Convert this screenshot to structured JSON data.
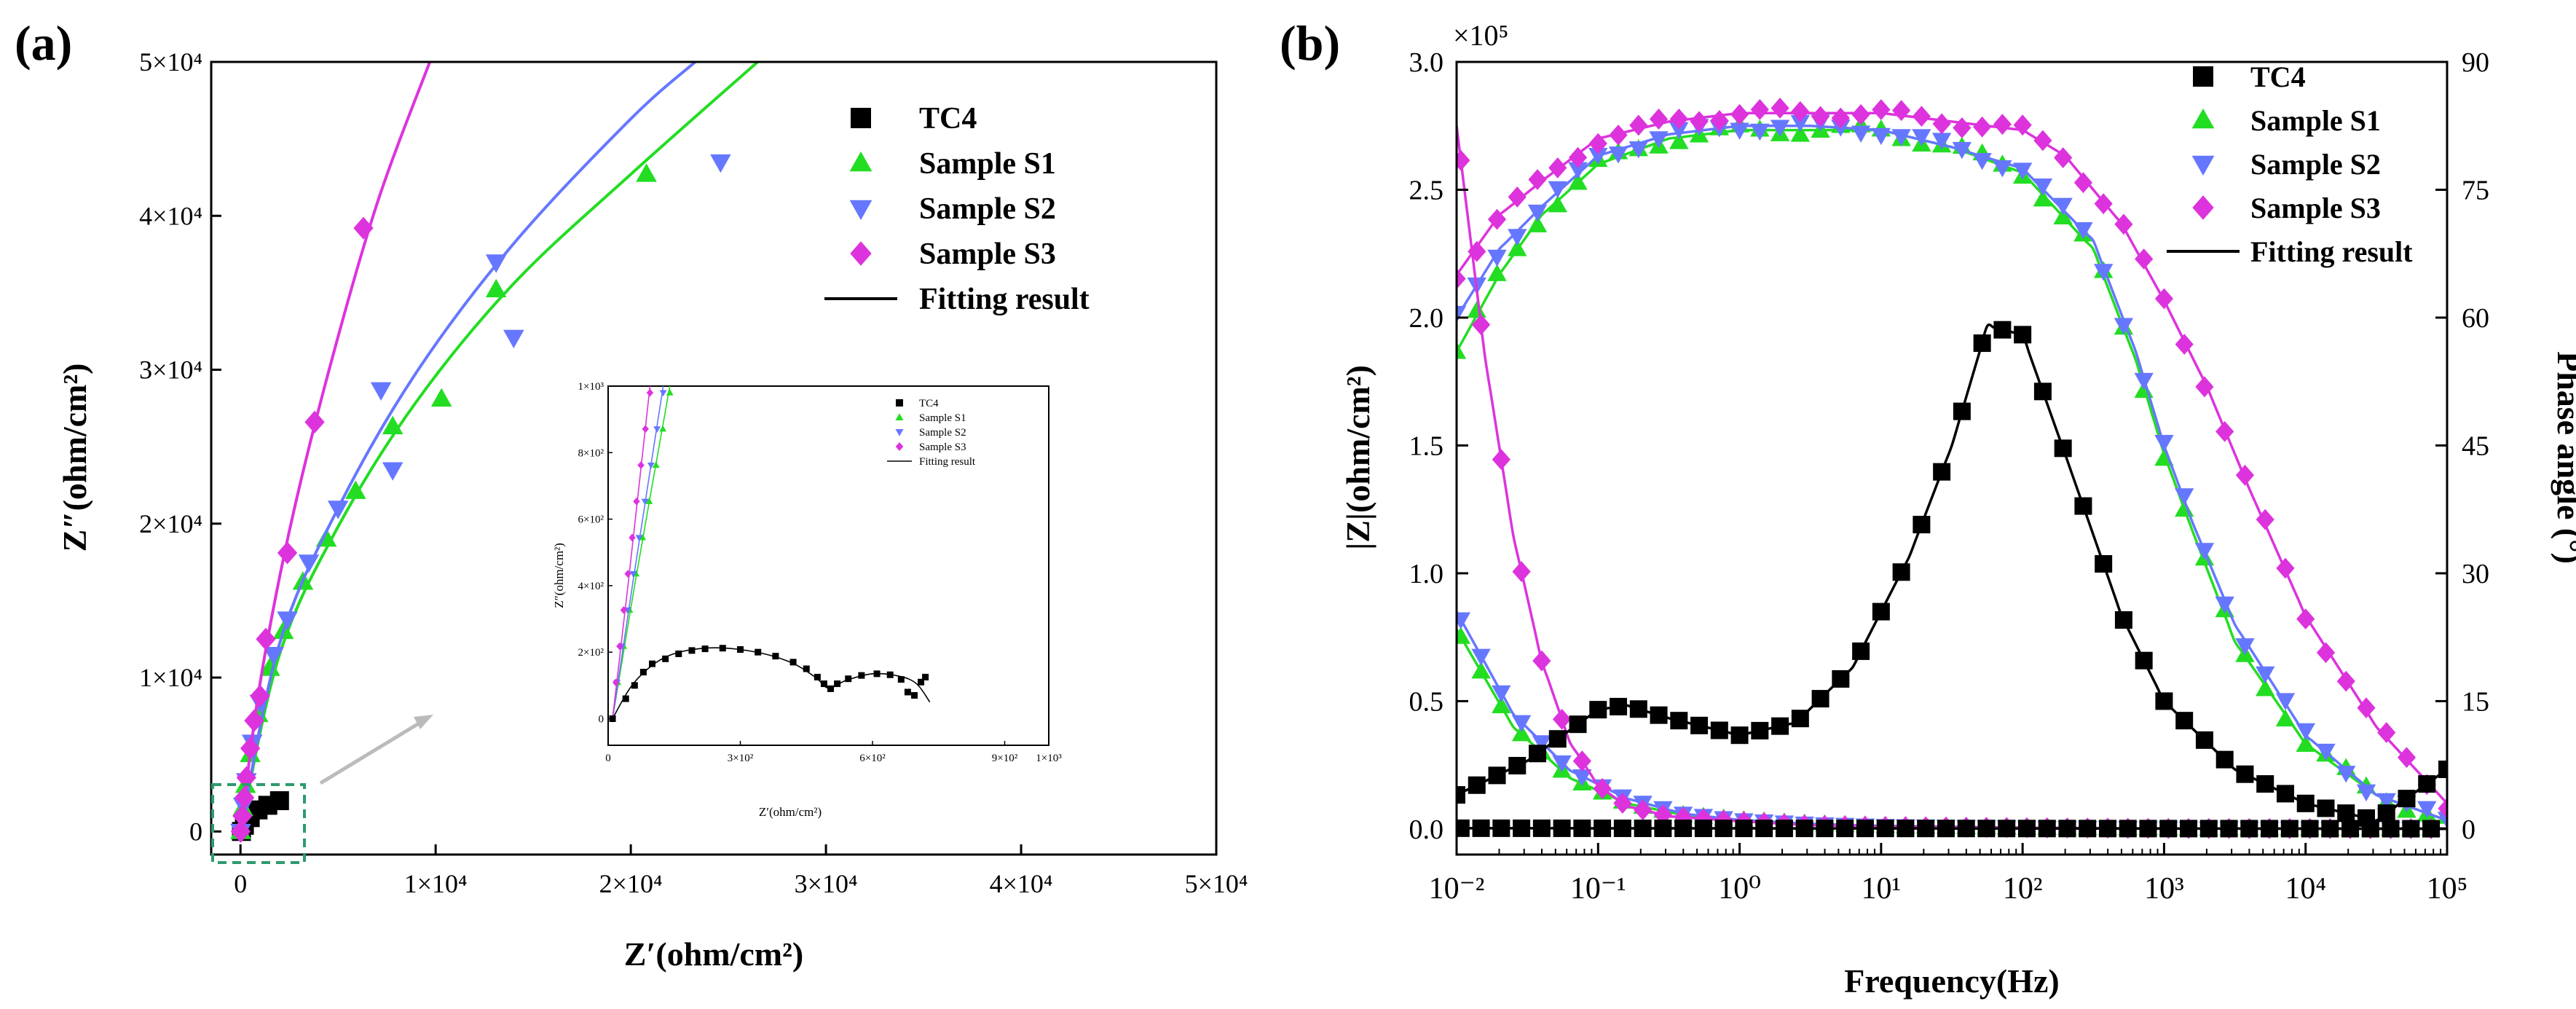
{
  "colors": {
    "tc4": "#000000",
    "s1": "#22dd22",
    "s2": "#6677ff",
    "s3": "#dd33dd",
    "zoom_box": "#2e9a6e",
    "arrow": "#bbbbbb",
    "axis": "#000000"
  },
  "chart_data": [
    {
      "panel": "(a)",
      "type": "scatter",
      "subtype": "nyquist",
      "xlabel": "Z′(ohm/cm²)",
      "ylabel": "Z″(ohm/cm²)",
      "xlim": [
        -1500,
        50000
      ],
      "ylim": [
        -1500,
        50000
      ],
      "x_ticks": [
        "0",
        "1×10⁴",
        "2×10⁴",
        "3×10⁴",
        "4×10⁴",
        "5×10⁴"
      ],
      "y_ticks": [
        "0",
        "1×10⁴",
        "2×10⁴",
        "3×10⁴",
        "4×10⁴",
        "5×10⁴"
      ],
      "legend": [
        "TC4",
        "Sample S1",
        "Sample S2",
        "Sample S3",
        "Fitting result"
      ],
      "legend_position": "top-right",
      "series": [
        {
          "name": "TC4",
          "marker": "square",
          "points": [
            [
              50,
              0
            ],
            [
              200,
              400
            ],
            [
              500,
              900
            ],
            [
              900,
              1400
            ],
            [
              1400,
              1700
            ],
            [
              2000,
              2000
            ]
          ]
        },
        {
          "name": "Sample S1",
          "marker": "triangle-up",
          "points": [
            [
              10,
              0
            ],
            [
              120,
              1500
            ],
            [
              260,
              3000
            ],
            [
              500,
              5000
            ],
            [
              900,
              7600
            ],
            [
              1500,
              10600
            ],
            [
              2200,
              13000
            ],
            [
              3200,
              16200
            ],
            [
              4400,
              19000
            ],
            [
              5900,
              22100
            ],
            [
              7800,
              26300
            ],
            [
              10300,
              28100
            ],
            [
              13100,
              35200
            ],
            [
              20800,
              42700
            ]
          ],
          "fit": [
            [
              0,
              0
            ],
            [
              2000,
              11500
            ],
            [
              5000,
              19800
            ],
            [
              9000,
              27900
            ],
            [
              14000,
              35600
            ],
            [
              20000,
              42700
            ],
            [
              26500,
              50000
            ]
          ]
        },
        {
          "name": "Sample S2",
          "marker": "triangle-down",
          "points": [
            [
              10,
              0
            ],
            [
              150,
              1700
            ],
            [
              300,
              3300
            ],
            [
              600,
              5800
            ],
            [
              1000,
              8400
            ],
            [
              1700,
              11500
            ],
            [
              2400,
              13800
            ],
            [
              3500,
              17500
            ],
            [
              5000,
              21000
            ],
            [
              7200,
              28700
            ],
            [
              7800,
              23500
            ],
            [
              13100,
              37000
            ],
            [
              14000,
              32100
            ],
            [
              24600,
              43500
            ]
          ],
          "fit": [
            [
              0,
              0
            ],
            [
              2000,
              12200
            ],
            [
              5000,
              21000
            ],
            [
              9000,
              29800
            ],
            [
              14000,
              38200
            ],
            [
              20000,
              46300
            ],
            [
              23300,
              50000
            ]
          ]
        },
        {
          "name": "Sample S3",
          "marker": "diamond",
          "points": [
            [
              10,
              0
            ],
            [
              100,
              1000
            ],
            [
              200,
              2200
            ],
            [
              300,
              3500
            ],
            [
              500,
              5400
            ],
            [
              700,
              7200
            ],
            [
              1000,
              8800
            ],
            [
              1300,
              12500
            ],
            [
              2400,
              18100
            ],
            [
              3800,
              26600
            ],
            [
              6300,
              39200
            ]
          ],
          "fit": [
            [
              0,
              0
            ],
            [
              1000,
              9600
            ],
            [
              2500,
              19500
            ],
            [
              4500,
              29800
            ],
            [
              7000,
              40800
            ],
            [
              9700,
              50000
            ]
          ]
        }
      ],
      "inset": {
        "xlabel": "Z′(ohm/cm²)",
        "ylabel": "Z″(ohm/cm²)",
        "xlim": [
          0,
          1000
        ],
        "ylim": [
          -80,
          1000
        ],
        "x_ticks": [
          "0",
          "3×10²",
          "6×10²",
          "9×10²",
          "1×10³"
        ],
        "y_ticks": [
          "0",
          "2×10²",
          "4×10²",
          "6×10²",
          "8×10²",
          "1×10³"
        ],
        "legend": [
          "TC4",
          "Sample S1",
          "Sample S2",
          "Sample S3",
          "Fitting result"
        ],
        "tc4_points": [
          [
            10,
            0
          ],
          [
            40,
            60
          ],
          [
            60,
            100
          ],
          [
            80,
            140
          ],
          [
            100,
            165
          ],
          [
            130,
            180
          ],
          [
            160,
            195
          ],
          [
            190,
            205
          ],
          [
            220,
            210
          ],
          [
            260,
            212
          ],
          [
            300,
            208
          ],
          [
            340,
            200
          ],
          [
            380,
            188
          ],
          [
            420,
            170
          ],
          [
            450,
            150
          ],
          [
            475,
            125
          ],
          [
            490,
            105
          ],
          [
            505,
            90
          ],
          [
            520,
            105
          ],
          [
            545,
            120
          ],
          [
            575,
            130
          ],
          [
            610,
            135
          ],
          [
            640,
            132
          ],
          [
            665,
            118
          ],
          [
            680,
            80
          ],
          [
            695,
            70
          ],
          [
            710,
            110
          ],
          [
            720,
            125
          ]
        ],
        "tc4_fit": [
          [
            10,
            0
          ],
          [
            60,
            110
          ],
          [
            130,
            185
          ],
          [
            220,
            212
          ],
          [
            320,
            204
          ],
          [
            410,
            172
          ],
          [
            470,
            125
          ],
          [
            500,
            92
          ],
          [
            540,
            115
          ],
          [
            600,
            135
          ],
          [
            660,
            128
          ],
          [
            700,
            105
          ],
          [
            730,
            50
          ]
        ]
      }
    },
    {
      "panel": "(b)",
      "type": "line",
      "subtype": "bode",
      "xlabel": "Frequency(Hz)",
      "ylabel_left": "|Z|(ohm/cm²)",
      "ylabel_right": "Phase angle (°)",
      "xscale": "log",
      "xlim_exp": [
        -2,
        5
      ],
      "ylim_left": [
        -0.1,
        3.0
      ],
      "ylim_right": [
        -3,
        90
      ],
      "left_scale_label": "×10⁵",
      "x_ticks": [
        "10⁻²",
        "10⁻¹",
        "10⁰",
        "10¹",
        "10²",
        "10³",
        "10⁴",
        "10⁵"
      ],
      "y_ticks_left": [
        "0.0",
        "0.5",
        "1.0",
        "1.5",
        "2.0",
        "2.5",
        "3.0"
      ],
      "y_ticks_right": [
        "0",
        "15",
        "30",
        "45",
        "60",
        "75",
        "90"
      ],
      "legend": [
        "TC4",
        "Sample S1",
        "Sample S2",
        "Sample S3",
        "Fitting result"
      ],
      "legend_position": "top-right",
      "series": [
        {
          "name": "TC4 phase",
          "axis": "right",
          "marker": "square",
          "anchors": [
            [
              -2,
              4
            ],
            [
              -1.5,
              8
            ],
            [
              -1,
              14
            ],
            [
              -0.8,
              14.5
            ],
            [
              -0.5,
              13
            ],
            [
              0,
              11
            ],
            [
              0.4,
              12.5
            ],
            [
              0.8,
              19
            ],
            [
              1.2,
              32
            ],
            [
              1.5,
              45
            ],
            [
              1.75,
              59
            ],
            [
              2,
              58
            ],
            [
              2.3,
              44
            ],
            [
              2.7,
              25
            ],
            [
              3,
              15
            ],
            [
              3.5,
              7
            ],
            [
              4,
              3
            ],
            [
              4.5,
              1
            ],
            [
              5,
              7
            ]
          ]
        },
        {
          "name": "TC4 |Z|",
          "axis": "left",
          "marker": "square",
          "anchors": [
            [
              -2,
              0.003
            ],
            [
              5,
              0.001
            ]
          ]
        },
        {
          "name": "Sample S1 phase",
          "axis": "right",
          "marker": "triangle-up",
          "anchors": [
            [
              -2,
              56
            ],
            [
              -1.7,
              65
            ],
            [
              -1.4,
              72
            ],
            [
              -1,
              78
            ],
            [
              -0.5,
              81
            ],
            [
              0,
              82
            ],
            [
              0.5,
              82
            ],
            [
              1,
              82
            ],
            [
              1.5,
              80
            ],
            [
              2,
              77
            ],
            [
              2.5,
              68
            ],
            [
              2.8,
              55
            ],
            [
              3,
              44
            ],
            [
              3.2,
              35
            ],
            [
              3.5,
              22
            ],
            [
              4,
              10
            ],
            [
              4.5,
              4
            ],
            [
              5,
              1
            ]
          ]
        },
        {
          "name": "Sample S1 |Z|",
          "axis": "left",
          "marker": "triangle-up",
          "anchors": [
            [
              -2,
              0.78
            ],
            [
              -1.6,
              0.4
            ],
            [
              -1.2,
              0.2
            ],
            [
              -0.8,
              0.1
            ],
            [
              -0.4,
              0.055
            ],
            [
              0,
              0.035
            ],
            [
              0.5,
              0.02
            ],
            [
              1,
              0.012
            ],
            [
              2,
              0.005
            ],
            [
              3,
              0.002
            ],
            [
              5,
              0.001
            ]
          ]
        },
        {
          "name": "Sample S2 phase",
          "axis": "right",
          "marker": "triangle-down",
          "anchors": [
            [
              -2,
              60
            ],
            [
              -1.7,
              68
            ],
            [
              -1.4,
              73
            ],
            [
              -1,
              79
            ],
            [
              -0.5,
              81.5
            ],
            [
              0,
              82.5
            ],
            [
              0.5,
              82.5
            ],
            [
              1,
              82
            ],
            [
              1.5,
              80
            ],
            [
              2,
              77.5
            ],
            [
              2.5,
              69
            ],
            [
              2.8,
              56
            ],
            [
              3,
              45
            ],
            [
              3.2,
              36
            ],
            [
              3.5,
              24
            ],
            [
              4,
              11
            ],
            [
              4.5,
              4
            ],
            [
              5,
              1
            ]
          ]
        },
        {
          "name": "Sample S2 |Z|",
          "axis": "left",
          "marker": "triangle-down",
          "anchors": [
            [
              -2,
              0.85
            ],
            [
              -1.6,
              0.45
            ],
            [
              -1.2,
              0.23
            ],
            [
              -0.8,
              0.12
            ],
            [
              -0.4,
              0.06
            ],
            [
              0,
              0.035
            ],
            [
              0.5,
              0.02
            ],
            [
              1,
              0.012
            ],
            [
              2,
              0.005
            ],
            [
              3,
              0.002
            ],
            [
              5,
              0.001
            ]
          ]
        },
        {
          "name": "Sample S3 phase",
          "axis": "right",
          "marker": "diamond",
          "anchors": [
            [
              -2,
              65
            ],
            [
              -1.7,
              72
            ],
            [
              -1.4,
              76
            ],
            [
              -1,
              81
            ],
            [
              -0.5,
              83
            ],
            [
              0,
              84
            ],
            [
              0.5,
              84
            ],
            [
              1,
              84
            ],
            [
              1.5,
              83
            ],
            [
              2,
              82
            ],
            [
              2.3,
              79
            ],
            [
              2.7,
              71
            ],
            [
              3,
              62
            ],
            [
              3.3,
              52
            ],
            [
              3.6,
              40
            ],
            [
              4,
              25
            ],
            [
              4.5,
              12
            ],
            [
              5,
              3
            ]
          ]
        },
        {
          "name": "Sample S3 |Z|",
          "axis": "left",
          "marker": "diamond",
          "anchors": [
            [
              -2,
              2.75
            ],
            [
              -1.8,
              1.85
            ],
            [
              -1.6,
              1.15
            ],
            [
              -1.4,
              0.66
            ],
            [
              -1.2,
              0.34
            ],
            [
              -1,
              0.17
            ],
            [
              -0.8,
              0.09
            ],
            [
              -0.5,
              0.05
            ],
            [
              0,
              0.03
            ],
            [
              0.5,
              0.015
            ],
            [
              1,
              0.01
            ],
            [
              2,
              0.005
            ],
            [
              3,
              0.002
            ],
            [
              5,
              0.001
            ]
          ]
        }
      ]
    }
  ]
}
